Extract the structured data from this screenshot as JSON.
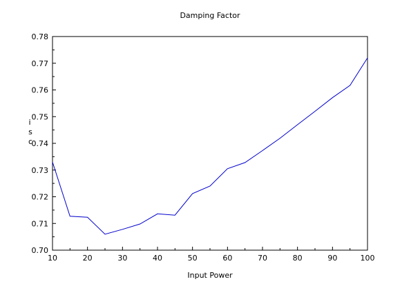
{
  "chart_data": {
    "type": "line",
    "title": "Damping Factor",
    "xlabel": "Input Power",
    "ylabel_chars": [
      "i",
      "s",
      "c"
    ],
    "xlim": [
      10,
      100
    ],
    "ylim": [
      0.7,
      0.78
    ],
    "x_ticks": [
      10,
      20,
      30,
      40,
      50,
      60,
      70,
      80,
      90,
      100
    ],
    "y_ticks": [
      "0.70",
      "0.71",
      "0.72",
      "0.73",
      "0.74",
      "0.75",
      "0.76",
      "0.77",
      "0.78"
    ],
    "grid": false,
    "series": [
      {
        "color": "#0000cc",
        "x": [
          10,
          15,
          20,
          25,
          30,
          35,
          40,
          45,
          50,
          55,
          60,
          65,
          70,
          75,
          80,
          85,
          90,
          95,
          100
        ],
        "y": [
          0.733,
          0.7127,
          0.7123,
          0.706,
          0.7078,
          0.7098,
          0.7136,
          0.7131,
          0.7212,
          0.724,
          0.7305,
          0.7328,
          0.7373,
          0.7419,
          0.747,
          0.752,
          0.7571,
          0.7617,
          0.772
        ]
      }
    ]
  }
}
